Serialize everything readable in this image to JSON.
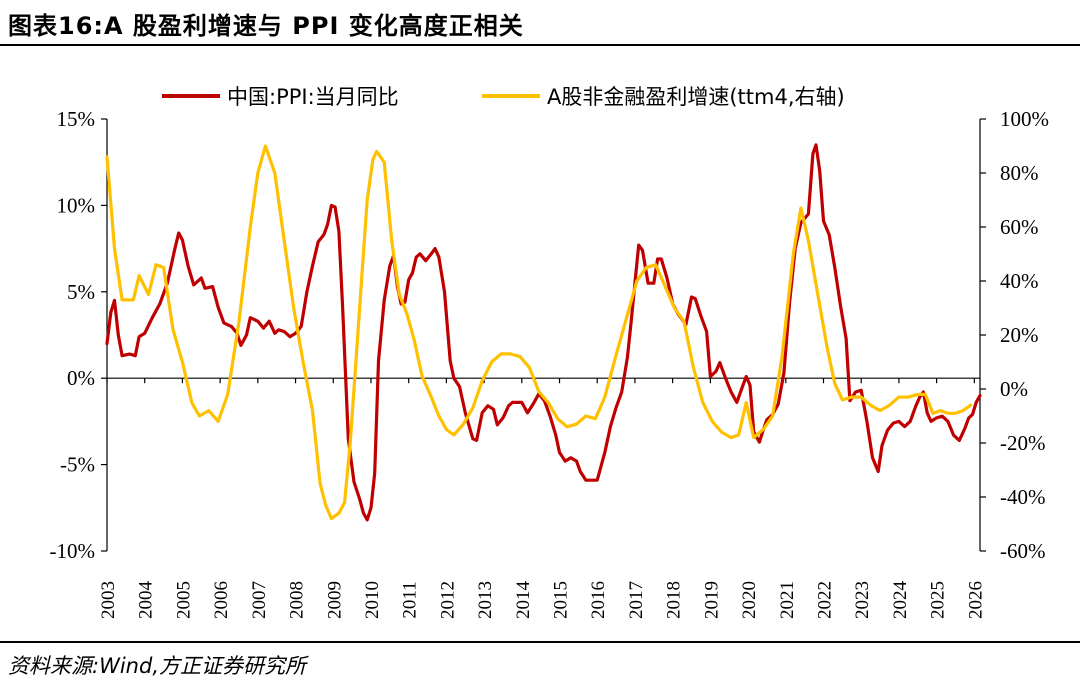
{
  "header": {
    "title": "图表16:A 股盈利增速与 PPI 变化高度正相关"
  },
  "footer": {
    "source": "资料来源:Wind,方正证券研究所"
  },
  "chart_data": {
    "type": "line",
    "title": "图表16:A 股盈利增速与 PPI 变化高度正相关",
    "left_axis": {
      "ylim": [
        -10,
        15
      ],
      "ticks": [
        "-10%",
        "-5%",
        "0%",
        "5%",
        "10%",
        "15%"
      ],
      "tick_values": [
        -10,
        -5,
        0,
        5,
        10,
        15
      ]
    },
    "right_axis": {
      "ylim": [
        -60,
        100
      ],
      "ticks": [
        "-60%",
        "-40%",
        "-20%",
        "0%",
        "20%",
        "40%",
        "60%",
        "80%",
        "100%"
      ],
      "tick_values": [
        -60,
        -40,
        -20,
        0,
        20,
        40,
        60,
        80,
        100
      ]
    },
    "x_axis": {
      "xlim": [
        2003,
        2026.15
      ],
      "ticks": [
        "2003",
        "2004",
        "2005",
        "2006",
        "2007",
        "2008",
        "2009",
        "2010",
        "2011",
        "2012",
        "2013",
        "2014",
        "2015",
        "2016",
        "2017",
        "2018",
        "2019",
        "2020",
        "2021",
        "2022",
        "2023",
        "2024",
        "2025",
        "2026"
      ]
    },
    "legend": {
      "placement": "top",
      "entries": [
        "中国:PPI:当月同比",
        "A股非金融盈利增速(ttm4,右轴)"
      ]
    },
    "series": [
      {
        "name": "中国:PPI:当月同比",
        "axis": "left",
        "color": "#C00000",
        "points": [
          [
            2003.0,
            2.0
          ],
          [
            2003.1,
            3.8
          ],
          [
            2003.2,
            4.5
          ],
          [
            2003.3,
            2.5
          ],
          [
            2003.4,
            1.3
          ],
          [
            2003.6,
            1.4
          ],
          [
            2003.75,
            1.3
          ],
          [
            2003.85,
            2.4
          ],
          [
            2004.0,
            2.6
          ],
          [
            2004.2,
            3.5
          ],
          [
            2004.4,
            4.3
          ],
          [
            2004.6,
            5.5
          ],
          [
            2004.8,
            7.5
          ],
          [
            2004.9,
            8.4
          ],
          [
            2005.0,
            8.0
          ],
          [
            2005.15,
            6.5
          ],
          [
            2005.3,
            5.4
          ],
          [
            2005.5,
            5.8
          ],
          [
            2005.6,
            5.2
          ],
          [
            2005.8,
            5.3
          ],
          [
            2005.95,
            4.1
          ],
          [
            2006.1,
            3.2
          ],
          [
            2006.3,
            3.0
          ],
          [
            2006.45,
            2.6
          ],
          [
            2006.55,
            1.9
          ],
          [
            2006.7,
            2.5
          ],
          [
            2006.8,
            3.5
          ],
          [
            2007.0,
            3.3
          ],
          [
            2007.15,
            2.9
          ],
          [
            2007.3,
            3.3
          ],
          [
            2007.45,
            2.6
          ],
          [
            2007.55,
            2.8
          ],
          [
            2007.7,
            2.7
          ],
          [
            2007.85,
            2.4
          ],
          [
            2008.0,
            2.6
          ],
          [
            2008.15,
            3.0
          ],
          [
            2008.3,
            5.0
          ],
          [
            2008.45,
            6.5
          ],
          [
            2008.6,
            7.9
          ],
          [
            2008.75,
            8.3
          ],
          [
            2008.85,
            8.9
          ],
          [
            2008.95,
            10.0
          ],
          [
            2009.05,
            9.9
          ],
          [
            2009.15,
            8.5
          ],
          [
            2009.25,
            4.0
          ],
          [
            2009.4,
            -3.5
          ],
          [
            2009.55,
            -6.0
          ],
          [
            2009.7,
            -7.0
          ],
          [
            2009.8,
            -7.8
          ],
          [
            2009.9,
            -8.2
          ],
          [
            2010.0,
            -7.5
          ],
          [
            2010.1,
            -5.5
          ],
          [
            2010.2,
            1.0
          ],
          [
            2010.35,
            4.5
          ],
          [
            2010.5,
            6.5
          ],
          [
            2010.6,
            7.1
          ],
          [
            2010.7,
            5.3
          ],
          [
            2010.8,
            4.3
          ],
          [
            2010.9,
            4.4
          ],
          [
            2011.0,
            5.7
          ],
          [
            2011.1,
            6.1
          ],
          [
            2011.2,
            7.0
          ],
          [
            2011.3,
            7.2
          ],
          [
            2011.45,
            6.8
          ],
          [
            2011.6,
            7.2
          ],
          [
            2011.7,
            7.5
          ],
          [
            2011.8,
            7.0
          ],
          [
            2011.95,
            5.0
          ],
          [
            2012.1,
            1.0
          ],
          [
            2012.2,
            0.0
          ],
          [
            2012.35,
            -0.5
          ],
          [
            2012.5,
            -2.0
          ],
          [
            2012.7,
            -3.5
          ],
          [
            2012.8,
            -3.6
          ],
          [
            2012.95,
            -2.0
          ],
          [
            2013.1,
            -1.6
          ],
          [
            2013.25,
            -1.8
          ],
          [
            2013.35,
            -2.7
          ],
          [
            2013.5,
            -2.3
          ],
          [
            2013.65,
            -1.6
          ],
          [
            2013.75,
            -1.4
          ],
          [
            2013.85,
            -1.4
          ],
          [
            2014.0,
            -1.4
          ],
          [
            2014.15,
            -2.0
          ],
          [
            2014.3,
            -1.5
          ],
          [
            2014.45,
            -0.9
          ],
          [
            2014.6,
            -1.3
          ],
          [
            2014.75,
            -2.2
          ],
          [
            2014.9,
            -3.3
          ],
          [
            2015.0,
            -4.3
          ],
          [
            2015.15,
            -4.8
          ],
          [
            2015.3,
            -4.6
          ],
          [
            2015.45,
            -4.8
          ],
          [
            2015.55,
            -5.4
          ],
          [
            2015.7,
            -5.9
          ],
          [
            2015.85,
            -5.9
          ],
          [
            2016.0,
            -5.9
          ],
          [
            2016.2,
            -4.3
          ],
          [
            2016.35,
            -2.8
          ],
          [
            2016.5,
            -1.7
          ],
          [
            2016.65,
            -0.8
          ],
          [
            2016.8,
            1.2
          ],
          [
            2016.9,
            3.3
          ],
          [
            2017.0,
            5.5
          ],
          [
            2017.1,
            7.7
          ],
          [
            2017.2,
            7.4
          ],
          [
            2017.35,
            5.5
          ],
          [
            2017.5,
            5.5
          ],
          [
            2017.6,
            6.9
          ],
          [
            2017.7,
            6.9
          ],
          [
            2017.85,
            5.8
          ],
          [
            2018.0,
            4.3
          ],
          [
            2018.15,
            3.7
          ],
          [
            2018.25,
            3.4
          ],
          [
            2018.35,
            3.1
          ],
          [
            2018.5,
            4.7
          ],
          [
            2018.6,
            4.6
          ],
          [
            2018.75,
            3.6
          ],
          [
            2018.9,
            2.7
          ],
          [
            2019.0,
            0.1
          ],
          [
            2019.15,
            0.4
          ],
          [
            2019.25,
            0.9
          ],
          [
            2019.4,
            0.0
          ],
          [
            2019.55,
            -0.8
          ],
          [
            2019.7,
            -1.4
          ],
          [
            2019.85,
            -0.5
          ],
          [
            2019.95,
            0.1
          ],
          [
            2020.05,
            -0.4
          ],
          [
            2020.15,
            -3.1
          ],
          [
            2020.3,
            -3.7
          ],
          [
            2020.4,
            -3.0
          ],
          [
            2020.5,
            -2.4
          ],
          [
            2020.65,
            -2.1
          ],
          [
            2020.8,
            -1.5
          ],
          [
            2020.95,
            0.3
          ],
          [
            2021.1,
            4.4
          ],
          [
            2021.25,
            7.5
          ],
          [
            2021.4,
            9.0
          ],
          [
            2021.6,
            9.5
          ],
          [
            2021.72,
            13.0
          ],
          [
            2021.8,
            13.5
          ],
          [
            2021.9,
            12.0
          ],
          [
            2022.0,
            9.1
          ],
          [
            2022.15,
            8.3
          ],
          [
            2022.3,
            6.4
          ],
          [
            2022.45,
            4.2
          ],
          [
            2022.6,
            2.3
          ],
          [
            2022.7,
            -1.3
          ],
          [
            2022.85,
            -0.8
          ],
          [
            2023.0,
            -0.7
          ],
          [
            2023.15,
            -2.5
          ],
          [
            2023.3,
            -4.6
          ],
          [
            2023.45,
            -5.4
          ],
          [
            2023.55,
            -3.9
          ],
          [
            2023.7,
            -3.0
          ],
          [
            2023.85,
            -2.6
          ],
          [
            2024.0,
            -2.5
          ],
          [
            2024.15,
            -2.8
          ],
          [
            2024.3,
            -2.5
          ],
          [
            2024.45,
            -1.6
          ],
          [
            2024.55,
            -1.1
          ],
          [
            2024.65,
            -0.8
          ],
          [
            2024.75,
            -2.0
          ],
          [
            2024.85,
            -2.5
          ],
          [
            2025.0,
            -2.3
          ],
          [
            2025.15,
            -2.2
          ],
          [
            2025.3,
            -2.5
          ],
          [
            2025.45,
            -3.3
          ],
          [
            2025.6,
            -3.6
          ],
          [
            2025.75,
            -2.9
          ],
          [
            2025.85,
            -2.3
          ],
          [
            2025.95,
            -2.1
          ],
          [
            2026.05,
            -1.4
          ],
          [
            2026.15,
            -1.0
          ]
        ]
      },
      {
        "name": "A股非金融盈利增速(ttm4,右轴)",
        "axis": "right",
        "color": "#FFC000",
        "points": [
          [
            2003.0,
            86.0
          ],
          [
            2003.2,
            52.0
          ],
          [
            2003.4,
            33.0
          ],
          [
            2003.7,
            33.0
          ],
          [
            2003.85,
            42.0
          ],
          [
            2004.1,
            35.0
          ],
          [
            2004.3,
            46.0
          ],
          [
            2004.5,
            45.0
          ],
          [
            2004.75,
            22.0
          ],
          [
            2005.0,
            10.0
          ],
          [
            2005.25,
            -5.0
          ],
          [
            2005.45,
            -10.0
          ],
          [
            2005.7,
            -8.0
          ],
          [
            2005.95,
            -12.0
          ],
          [
            2006.2,
            -2.0
          ],
          [
            2006.5,
            25.0
          ],
          [
            2006.8,
            60.0
          ],
          [
            2007.0,
            80.0
          ],
          [
            2007.2,
            90.0
          ],
          [
            2007.45,
            80.0
          ],
          [
            2007.7,
            55.0
          ],
          [
            2007.95,
            30.0
          ],
          [
            2008.2,
            10.0
          ],
          [
            2008.45,
            -8.0
          ],
          [
            2008.65,
            -35.0
          ],
          [
            2008.8,
            -43.0
          ],
          [
            2008.95,
            -48.0
          ],
          [
            2009.15,
            -46.0
          ],
          [
            2009.3,
            -42.0
          ],
          [
            2009.45,
            -20.0
          ],
          [
            2009.6,
            10.0
          ],
          [
            2009.75,
            40.0
          ],
          [
            2009.9,
            70.0
          ],
          [
            2010.05,
            85.0
          ],
          [
            2010.15,
            88.0
          ],
          [
            2010.35,
            84.0
          ],
          [
            2010.55,
            55.0
          ],
          [
            2010.75,
            35.0
          ],
          [
            2010.95,
            28.0
          ],
          [
            2011.15,
            18.0
          ],
          [
            2011.35,
            5.0
          ],
          [
            2011.6,
            -3.0
          ],
          [
            2011.8,
            -10.0
          ],
          [
            2012.0,
            -15.0
          ],
          [
            2012.2,
            -17.0
          ],
          [
            2012.45,
            -13.0
          ],
          [
            2012.7,
            -7.0
          ],
          [
            2012.95,
            3.0
          ],
          [
            2013.2,
            10.0
          ],
          [
            2013.45,
            13.0
          ],
          [
            2013.7,
            13.0
          ],
          [
            2013.95,
            12.0
          ],
          [
            2014.2,
            8.0
          ],
          [
            2014.45,
            -1.0
          ],
          [
            2014.7,
            -5.0
          ],
          [
            2014.95,
            -11.0
          ],
          [
            2015.2,
            -14.0
          ],
          [
            2015.45,
            -13.0
          ],
          [
            2015.7,
            -10.0
          ],
          [
            2015.95,
            -11.0
          ],
          [
            2016.2,
            -3.0
          ],
          [
            2016.45,
            10.0
          ],
          [
            2016.65,
            20.0
          ],
          [
            2016.85,
            30.0
          ],
          [
            2017.05,
            40.0
          ],
          [
            2017.3,
            45.0
          ],
          [
            2017.55,
            46.0
          ],
          [
            2017.8,
            38.0
          ],
          [
            2018.05,
            30.0
          ],
          [
            2018.3,
            25.0
          ],
          [
            2018.55,
            8.0
          ],
          [
            2018.8,
            -5.0
          ],
          [
            2019.05,
            -12.0
          ],
          [
            2019.3,
            -16.0
          ],
          [
            2019.55,
            -18.0
          ],
          [
            2019.75,
            -17.0
          ],
          [
            2019.95,
            -5.0
          ],
          [
            2020.15,
            -18.0
          ],
          [
            2020.4,
            -15.0
          ],
          [
            2020.65,
            -10.0
          ],
          [
            2020.9,
            12.0
          ],
          [
            2021.2,
            50.0
          ],
          [
            2021.4,
            67.0
          ],
          [
            2021.6,
            55.0
          ],
          [
            2021.85,
            35.0
          ],
          [
            2022.1,
            15.0
          ],
          [
            2022.3,
            2.0
          ],
          [
            2022.5,
            -4.0
          ],
          [
            2022.75,
            -3.0
          ],
          [
            2023.0,
            -3.0
          ],
          [
            2023.25,
            -6.0
          ],
          [
            2023.5,
            -8.0
          ],
          [
            2023.75,
            -6.0
          ],
          [
            2024.0,
            -3.0
          ],
          [
            2024.25,
            -3.0
          ],
          [
            2024.5,
            -2.0
          ],
          [
            2024.7,
            -2.0
          ],
          [
            2024.9,
            -9.0
          ],
          [
            2025.1,
            -8.0
          ],
          [
            2025.3,
            -9.0
          ],
          [
            2025.5,
            -9.0
          ],
          [
            2025.7,
            -8.0
          ],
          [
            2025.9,
            -6.0
          ]
        ]
      }
    ]
  }
}
